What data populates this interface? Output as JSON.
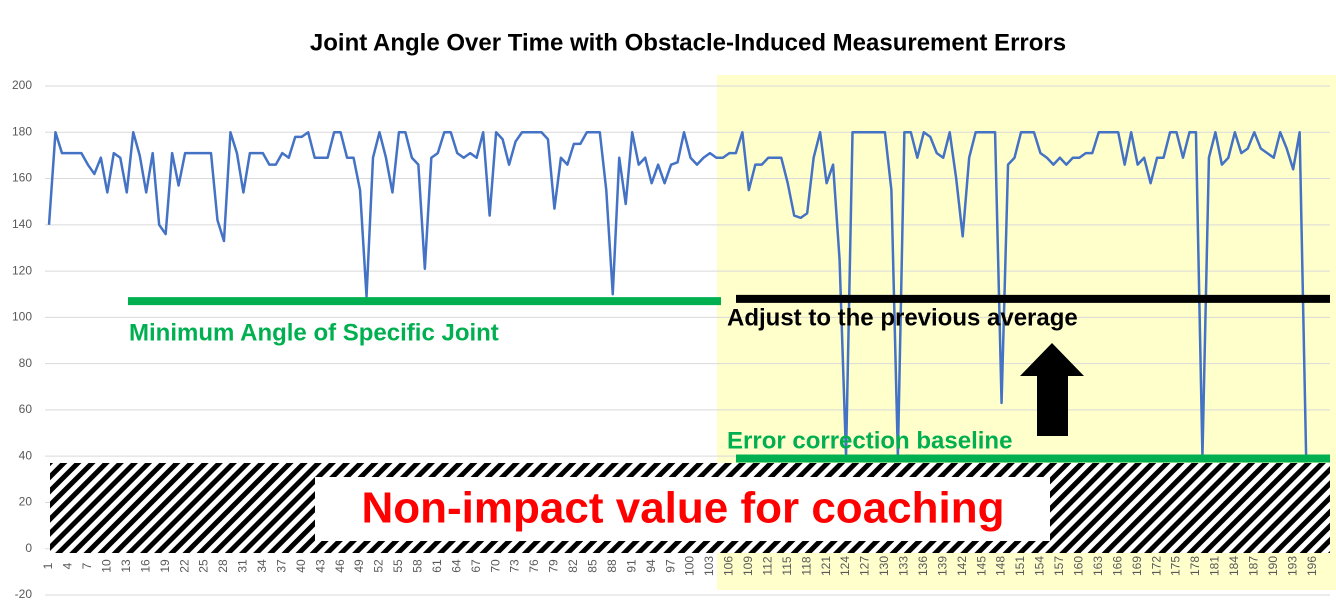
{
  "chart_data": {
    "type": "line",
    "title": "Joint Angle Over Time with Obstacle-Induced Measurement Errors",
    "categories": [
      1,
      null,
      null,
      4,
      null,
      null,
      7,
      null,
      null,
      10,
      null,
      null,
      13,
      null,
      null,
      16,
      null,
      null,
      19,
      null,
      null,
      22,
      null,
      null,
      25,
      null,
      null,
      28,
      null,
      null,
      31,
      null,
      null,
      34,
      null,
      null,
      37,
      null,
      null,
      40,
      null,
      null,
      43,
      null,
      null,
      46,
      null,
      null,
      49,
      null,
      null,
      52,
      null,
      null,
      55,
      null,
      null,
      58,
      null,
      null,
      61,
      null,
      null,
      64,
      null,
      null,
      67,
      null,
      null,
      70,
      null,
      null,
      73,
      null,
      null,
      76,
      null,
      null,
      79,
      null,
      null,
      82,
      null,
      null,
      85,
      null,
      null,
      88,
      null,
      null,
      91,
      null,
      null,
      94,
      null,
      null,
      97,
      null,
      null,
      100,
      null,
      null,
      103,
      null,
      null,
      106,
      null,
      null,
      109,
      null,
      null,
      112,
      null,
      null,
      115,
      null,
      null,
      118,
      null,
      null,
      121,
      null,
      null,
      124,
      null,
      null,
      127,
      null,
      null,
      130,
      null,
      null,
      133,
      null,
      null,
      136,
      null,
      null,
      139,
      null,
      null,
      142,
      null,
      null,
      145,
      null,
      null,
      148,
      null,
      null,
      151,
      null,
      null,
      154,
      null,
      null,
      157,
      null,
      null,
      160,
      null,
      null,
      163,
      null,
      null,
      166,
      null,
      null,
      169,
      null,
      null,
      172,
      null,
      null,
      175,
      null,
      null,
      178,
      null,
      null,
      181,
      null,
      null,
      184,
      null,
      null,
      187,
      null,
      null,
      190,
      null,
      null,
      193,
      null,
      null,
      196
    ],
    "values": [
      140,
      180,
      171,
      171,
      171,
      171,
      166,
      162,
      169,
      154,
      171,
      169,
      154,
      180,
      170,
      154,
      171,
      140,
      136,
      171,
      157,
      171,
      171,
      171,
      171,
      171,
      142,
      133,
      180,
      171,
      154,
      171,
      171,
      171,
      166,
      166,
      171,
      169,
      178,
      178,
      180,
      169,
      169,
      169,
      180,
      180,
      169,
      169,
      155,
      109,
      169,
      180,
      169,
      154,
      180,
      180,
      169,
      166,
      121,
      169,
      171,
      180,
      180,
      171,
      169,
      171,
      169,
      180,
      144,
      180,
      177,
      166,
      176,
      180,
      180,
      180,
      180,
      177,
      147,
      169,
      166,
      175,
      175,
      180,
      180,
      180,
      155,
      110,
      169,
      149,
      180,
      166,
      169,
      158,
      166,
      158,
      166,
      167,
      180,
      169,
      166,
      169,
      171,
      169,
      169,
      171,
      171,
      180,
      155,
      166,
      166,
      169,
      169,
      169,
      158,
      144,
      143,
      145,
      169,
      180,
      158,
      166,
      125,
      40,
      180,
      180,
      180,
      180,
      180,
      180,
      155,
      40,
      180,
      180,
      169,
      180,
      178,
      171,
      169,
      180,
      160,
      135,
      169,
      180,
      180,
      180,
      180,
      63,
      166,
      169,
      180,
      180,
      180,
      171,
      169,
      166,
      169,
      166,
      169,
      169,
      171,
      171,
      180,
      180,
      180,
      180,
      166,
      180,
      166,
      169,
      158,
      169,
      169,
      180,
      180,
      169,
      180,
      180,
      40,
      169,
      180,
      166,
      169,
      180,
      171,
      173,
      180,
      173,
      171,
      169,
      180,
      173,
      164,
      180,
      40,
      null
    ],
    "color": "#4472c4",
    "ylim": [
      -20,
      200
    ],
    "yticks": [
      -20,
      0,
      20,
      40,
      60,
      80,
      100,
      120,
      140,
      160,
      180,
      200
    ],
    "grid": true,
    "reference_lines": [
      {
        "label": "Minimum Angle of Specific Joint",
        "value": 107,
        "color": "#00b050"
      },
      {
        "label": "Adjust to the previous average",
        "value": 108,
        "color": "#000000"
      },
      {
        "label": "Error correction baseline",
        "value": 39,
        "color": "#00b050"
      }
    ],
    "band_label": "Non-impact value for coaching"
  }
}
